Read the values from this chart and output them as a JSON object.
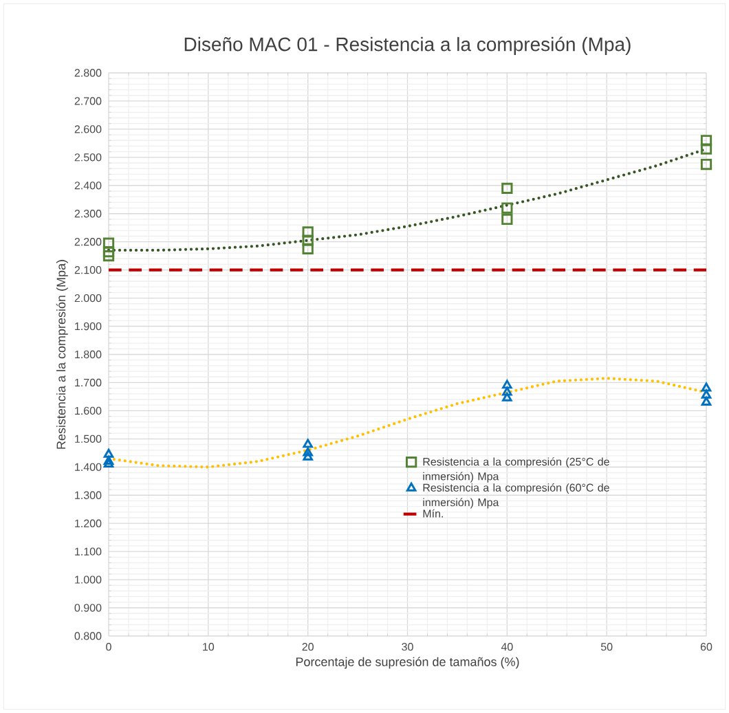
{
  "chart_data": {
    "type": "scatter",
    "title": "Diseño MAC 01 - Resistencia a la compresión (Mpa)",
    "xlabel": "Porcentaje de supresión de tamaños (%)",
    "ylabel": "Resistencia a la compresión (Mpa)",
    "xlim": [
      0,
      60
    ],
    "xticks": [
      0,
      10,
      20,
      30,
      40,
      50,
      60
    ],
    "ylim": [
      0.8,
      2.8
    ],
    "yticks": [
      {
        "value": 0.8,
        "label": "0.800"
      },
      {
        "value": 0.9,
        "label": "0.900"
      },
      {
        "value": 1.0,
        "label": "1.000"
      },
      {
        "value": 1.1,
        "label": "1.100"
      },
      {
        "value": 1.2,
        "label": "1.200"
      },
      {
        "value": 1.3,
        "label": "1.300"
      },
      {
        "value": 1.4,
        "label": "1.400"
      },
      {
        "value": 1.5,
        "label": "1.500"
      },
      {
        "value": 1.6,
        "label": "1.600"
      },
      {
        "value": 1.7,
        "label": "1.700"
      },
      {
        "value": 1.8,
        "label": "1.800"
      },
      {
        "value": 1.9,
        "label": "1.900"
      },
      {
        "value": 2.0,
        "label": "2.000"
      },
      {
        "value": 2.1,
        "label": "2.100"
      },
      {
        "value": 2.2,
        "label": "2.200"
      },
      {
        "value": 2.3,
        "label": "2.300"
      },
      {
        "value": 2.4,
        "label": "2.400"
      },
      {
        "value": 2.5,
        "label": "2.500"
      },
      {
        "value": 2.6,
        "label": "2.600"
      },
      {
        "value": 2.7,
        "label": "2.700"
      },
      {
        "value": 2.8,
        "label": "2.800"
      }
    ],
    "grid": true,
    "legend": "right",
    "series": [
      {
        "name": "Resistencia a la compresión (25°C de inmersión) Mpa",
        "color": "#548235",
        "marker": "square",
        "x": [
          0,
          0,
          0,
          20,
          20,
          20,
          40,
          40,
          40,
          60,
          60,
          60
        ],
        "values": [
          2.195,
          2.165,
          2.15,
          2.235,
          2.205,
          2.175,
          2.39,
          2.32,
          2.28,
          2.56,
          2.53,
          2.475
        ]
      },
      {
        "name": "Resistencia a la compresión (60°C de inmersión) Mpa",
        "color": "#0070c0",
        "marker": "triangle",
        "x": [
          0,
          0,
          0,
          20,
          20,
          20,
          40,
          40,
          40,
          60,
          60,
          60
        ],
        "values": [
          1.445,
          1.42,
          1.41,
          1.48,
          1.45,
          1.435,
          1.69,
          1.665,
          1.645,
          1.68,
          1.655,
          1.63
        ]
      },
      {
        "type": "line",
        "line_style": "dotted",
        "marker": "none",
        "color": "#375623",
        "x": [
          0,
          5,
          10,
          15,
          20,
          25,
          30,
          35,
          40,
          45,
          50,
          55,
          60
        ],
        "values": [
          2.17,
          2.17,
          2.175,
          2.185,
          2.205,
          2.225,
          2.255,
          2.29,
          2.33,
          2.37,
          2.42,
          2.47,
          2.53
        ]
      },
      {
        "type": "line",
        "line_style": "dotted",
        "marker": "none",
        "color": "#ffc000",
        "x": [
          0,
          5,
          10,
          15,
          20,
          25,
          30,
          35,
          40,
          45,
          50,
          55,
          60
        ],
        "values": [
          1.43,
          1.405,
          1.4,
          1.42,
          1.46,
          1.51,
          1.57,
          1.625,
          1.665,
          1.705,
          1.715,
          1.705,
          1.665
        ]
      }
    ],
    "ref_lines": [
      {
        "axis": "y",
        "value": 2.1,
        "label": "Mín.",
        "color": "#c00000",
        "line_style": "dashed"
      }
    ]
  }
}
